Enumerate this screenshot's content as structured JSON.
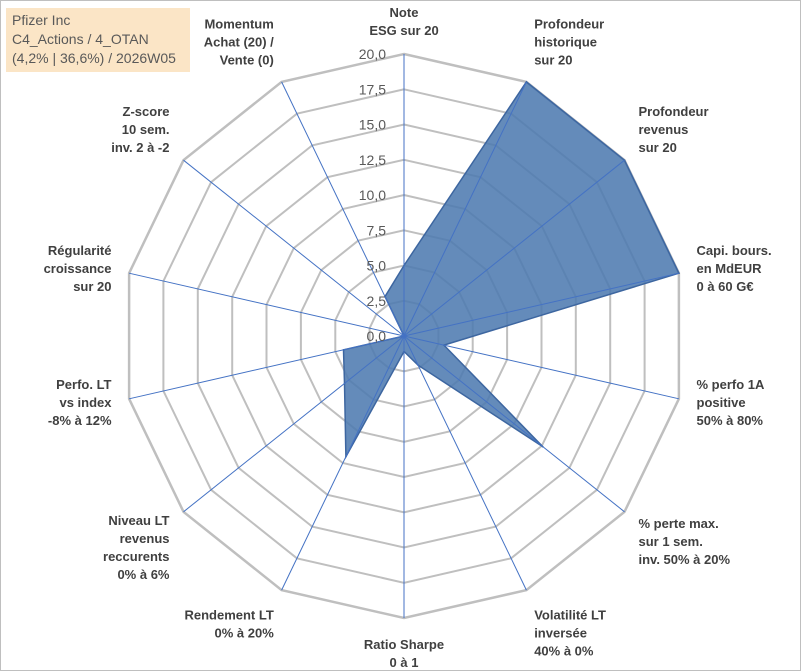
{
  "title_box": {
    "line1": "Pfizer Inc",
    "line2": "C4_Actions / 4_OTAN",
    "line3": "(4,2% | 36,6%) / 2026W05"
  },
  "colors": {
    "series_fill": "#4f7bb0",
    "series_line": "#3d66a0",
    "spoke": "#4472c4",
    "grid": "#bfbfbf",
    "title_bg": "#fbe5c6"
  },
  "chart_data": {
    "type": "radar",
    "title": "",
    "rlim": [
      0,
      20
    ],
    "ticks": [
      "0,0",
      "2,5",
      "5,0",
      "7,5",
      "10,0",
      "12,5",
      "15,0",
      "17,5",
      "20,0"
    ],
    "tick_values": [
      0,
      2.5,
      5,
      7.5,
      10,
      12.5,
      15,
      17.5,
      20
    ],
    "grid": true,
    "axes": [
      [
        "Note",
        "ESG sur 20"
      ],
      [
        "Profondeur",
        "historique",
        "sur 20"
      ],
      [
        "Profondeur",
        "revenus",
        "sur 20"
      ],
      [
        "Capi. bours.",
        "en MdEUR",
        "0 à 60 G€"
      ],
      [
        "% perfo 1A",
        "positive",
        "50% à 80%"
      ],
      [
        "% perte max.",
        "sur 1 sem.",
        "inv. 50% à 20%"
      ],
      [
        "Volatilité LT",
        "inversée",
        "40% à 0%"
      ],
      [
        "Ratio Sharpe",
        "0 à 1"
      ],
      [
        "Rendement LT",
        "0% à 20%"
      ],
      [
        "Niveau LT",
        "revenus",
        "reccurents",
        "0% à 6%"
      ],
      [
        "Perfo. LT",
        "vs index",
        "-8% à 12%"
      ],
      [
        "Régularité",
        "croissance",
        "sur 20"
      ],
      [
        "Z-score",
        "10 sem.",
        "inv. 2 à -2"
      ],
      [
        "Momentum",
        "Achat (20) /",
        "Vente (0)"
      ]
    ],
    "series": [
      {
        "values": [
          5.0,
          20.0,
          20.0,
          20.0,
          2.9,
          12.6,
          2.3,
          1.1,
          9.5,
          5.4,
          4.4,
          0.0,
          0.0,
          3.1
        ]
      }
    ]
  }
}
